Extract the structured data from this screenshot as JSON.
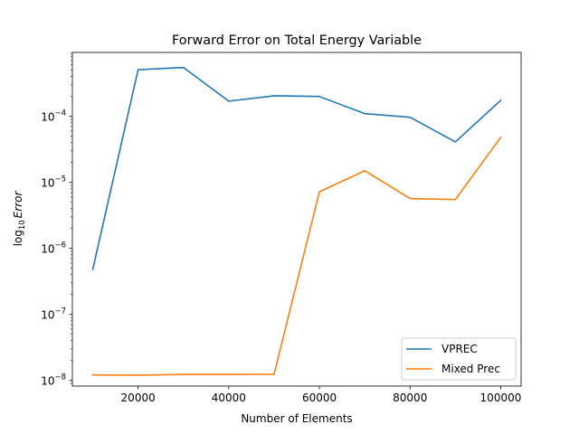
{
  "chart_data": {
    "type": "line",
    "title": "Forward Error on Total Energy Variable",
    "xlabel": "Number of Elements",
    "ylabel_prefix": "log",
    "ylabel_sub": "10",
    "ylabel_var": "Error",
    "yscale": "log",
    "xlim": [
      5500,
      104500
    ],
    "ylim": [
      8.2e-09,
      0.00093
    ],
    "x_ticks": [
      20000,
      40000,
      60000,
      80000,
      100000
    ],
    "x_tick_labels": [
      "20000",
      "40000",
      "60000",
      "80000",
      "100000"
    ],
    "y_major_ticks": [
      1e-08,
      1e-07,
      1e-06,
      1e-05,
      0.0001
    ],
    "y_tick_labels": [
      {
        "base": "10",
        "exp": "−8"
      },
      {
        "base": "10",
        "exp": "−7"
      },
      {
        "base": "10",
        "exp": "−6"
      },
      {
        "base": "10",
        "exp": "−5"
      },
      {
        "base": "10",
        "exp": "−4"
      }
    ],
    "grid": false,
    "legend_position": "lower-right",
    "x": [
      10000,
      20000,
      30000,
      40000,
      50000,
      60000,
      70000,
      80000,
      90000,
      100000
    ],
    "series": [
      {
        "name": "VPREC",
        "color": "#1f77b4",
        "values": [
          4.8e-07,
          0.00051,
          0.00055,
          0.00017,
          0.000205,
          0.0002,
          0.00011,
          9.7e-05,
          4.1e-05,
          0.000175
        ]
      },
      {
        "name": "Mixed Prec",
        "color": "#ff7f0e",
        "values": [
          1.21e-08,
          1.2e-08,
          1.23e-08,
          1.23e-08,
          1.24e-08,
          7.2e-06,
          1.5e-05,
          5.7e-06,
          5.5e-06,
          4.8e-05
        ]
      }
    ]
  }
}
